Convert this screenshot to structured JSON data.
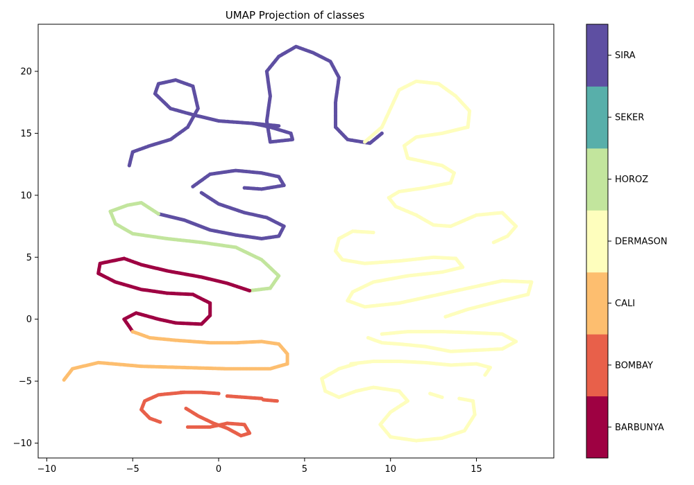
{
  "chart_data": {
    "type": "scatter",
    "title": "UMAP Projection of classes",
    "xlabel": "",
    "ylabel": "",
    "xlim": [
      -10.5,
      19.5
    ],
    "ylim": [
      -11.2,
      23.8
    ],
    "xticks": [
      -10,
      -5,
      0,
      5,
      10,
      15
    ],
    "yticks": [
      -10,
      -5,
      0,
      5,
      10,
      15,
      20
    ],
    "grid": false,
    "colorbar": {
      "placement": "right",
      "classes": [
        {
          "label": "BARBUNYA",
          "color": "#9e0142"
        },
        {
          "label": "BOMBAY",
          "color": "#e8604a"
        },
        {
          "label": "CALI",
          "color": "#fdbe6f"
        },
        {
          "label": "DERMASON",
          "color": "#fefebd"
        },
        {
          "label": "HOROZ",
          "color": "#c2e59d"
        },
        {
          "label": "SEKER",
          "color": "#58afaa"
        },
        {
          "label": "SIRA",
          "color": "#5e4fa2"
        }
      ]
    },
    "series": [
      {
        "class_index": 6,
        "points": [
          [
            -5.2,
            12.4
          ],
          [
            -5.0,
            13.5
          ],
          [
            -4.0,
            14.0
          ],
          [
            -2.8,
            14.5
          ],
          [
            -1.8,
            15.5
          ],
          [
            -1.2,
            17.0
          ],
          [
            -1.5,
            18.8
          ],
          [
            -2.5,
            19.3
          ],
          [
            -3.5,
            19.0
          ],
          [
            -3.7,
            18.2
          ],
          [
            -2.8,
            17.0
          ],
          [
            -1.5,
            16.5
          ],
          [
            0.0,
            16.0
          ],
          [
            2.0,
            15.8
          ],
          [
            3.5,
            15.6
          ]
        ]
      },
      {
        "class_index": 6,
        "points": [
          [
            2.0,
            15.8
          ],
          [
            3.0,
            15.5
          ],
          [
            4.2,
            15.0
          ],
          [
            4.3,
            14.5
          ],
          [
            3.0,
            14.3
          ],
          [
            2.8,
            16.0
          ],
          [
            3.0,
            18.0
          ],
          [
            2.8,
            20.0
          ],
          [
            3.5,
            21.2
          ],
          [
            4.5,
            22.0
          ],
          [
            5.5,
            21.5
          ],
          [
            6.5,
            20.8
          ],
          [
            7.0,
            19.5
          ],
          [
            6.8,
            17.5
          ],
          [
            6.8,
            15.5
          ],
          [
            7.5,
            14.5
          ],
          [
            8.8,
            14.2
          ],
          [
            9.5,
            15.0
          ]
        ]
      },
      {
        "class_index": 6,
        "points": [
          [
            -1.5,
            10.7
          ],
          [
            -0.5,
            11.7
          ],
          [
            1.0,
            12.0
          ],
          [
            2.5,
            11.8
          ],
          [
            3.5,
            11.5
          ],
          [
            3.8,
            10.8
          ],
          [
            2.5,
            10.5
          ],
          [
            1.5,
            10.6
          ]
        ]
      },
      {
        "class_index": 6,
        "points": [
          [
            -1.0,
            10.2
          ],
          [
            0.0,
            9.3
          ],
          [
            1.5,
            8.6
          ],
          [
            2.8,
            8.2
          ],
          [
            3.8,
            7.5
          ],
          [
            3.5,
            6.7
          ],
          [
            2.5,
            6.5
          ],
          [
            1.0,
            6.8
          ],
          [
            -0.5,
            7.2
          ],
          [
            -2.0,
            8.0
          ],
          [
            -3.5,
            8.5
          ]
        ]
      },
      {
        "class_index": 4,
        "points": [
          [
            -3.5,
            8.5
          ],
          [
            -4.5,
            9.4
          ],
          [
            -5.3,
            9.2
          ],
          [
            -6.3,
            8.7
          ],
          [
            -6.0,
            7.7
          ],
          [
            -5.0,
            6.9
          ],
          [
            -3.0,
            6.5
          ],
          [
            -1.0,
            6.2
          ],
          [
            1.0,
            5.8
          ],
          [
            2.5,
            4.8
          ],
          [
            3.5,
            3.5
          ],
          [
            3.0,
            2.5
          ],
          [
            1.8,
            2.3
          ]
        ]
      },
      {
        "class_index": 0,
        "points": [
          [
            1.8,
            2.3
          ],
          [
            0.5,
            2.9
          ],
          [
            -1.0,
            3.4
          ],
          [
            -3.0,
            3.9
          ],
          [
            -4.5,
            4.4
          ],
          [
            -5.5,
            4.9
          ],
          [
            -6.9,
            4.5
          ],
          [
            -7.0,
            3.7
          ],
          [
            -6.0,
            3.0
          ],
          [
            -4.5,
            2.4
          ],
          [
            -3.0,
            2.1
          ],
          [
            -1.5,
            2.0
          ],
          [
            -0.5,
            1.3
          ],
          [
            -0.5,
            0.3
          ],
          [
            -1.0,
            -0.4
          ],
          [
            -2.5,
            -0.3
          ],
          [
            -3.5,
            0.0
          ],
          [
            -4.8,
            0.5
          ],
          [
            -5.5,
            0.0
          ],
          [
            -5.0,
            -1.0
          ]
        ]
      },
      {
        "class_index": 2,
        "points": [
          [
            -5.0,
            -1.0
          ],
          [
            -4.0,
            -1.5
          ],
          [
            -2.5,
            -1.7
          ],
          [
            -0.5,
            -1.9
          ],
          [
            1.0,
            -1.9
          ],
          [
            2.5,
            -1.8
          ],
          [
            3.5,
            -2.0
          ],
          [
            4.0,
            -2.8
          ],
          [
            4.0,
            -3.6
          ],
          [
            3.0,
            -4.0
          ],
          [
            0.5,
            -4.0
          ],
          [
            -2.0,
            -3.9
          ],
          [
            -4.5,
            -3.8
          ],
          [
            -7.0,
            -3.5
          ],
          [
            -8.5,
            -4.0
          ],
          [
            -9.0,
            -4.9
          ]
        ]
      },
      {
        "class_index": 1,
        "points": [
          [
            -2.0,
            -5.9
          ],
          [
            -3.5,
            -6.1
          ],
          [
            -4.3,
            -6.6
          ],
          [
            -4.5,
            -7.3
          ],
          [
            -4.0,
            -8.0
          ],
          [
            -3.4,
            -8.3
          ]
        ]
      },
      {
        "class_index": 1,
        "points": [
          [
            -2.2,
            -5.9
          ],
          [
            -1.0,
            -5.9
          ],
          [
            0.0,
            -6.0
          ]
        ]
      },
      {
        "class_index": 1,
        "points": [
          [
            0.5,
            -6.2
          ],
          [
            1.5,
            -6.3
          ],
          [
            2.5,
            -6.4
          ]
        ]
      },
      {
        "class_index": 1,
        "points": [
          [
            2.6,
            -6.5
          ],
          [
            3.4,
            -6.6
          ]
        ]
      },
      {
        "class_index": 1,
        "points": [
          [
            -1.9,
            -7.2
          ],
          [
            -1.2,
            -7.8
          ],
          [
            -0.3,
            -8.4
          ],
          [
            0.5,
            -8.8
          ],
          [
            1.3,
            -9.4
          ],
          [
            1.8,
            -9.2
          ],
          [
            1.5,
            -8.5
          ],
          [
            0.5,
            -8.4
          ],
          [
            -0.5,
            -8.7
          ],
          [
            -1.8,
            -8.7
          ]
        ]
      },
      {
        "class_index": 3,
        "points": [
          [
            8.5,
            14.3
          ],
          [
            9.5,
            15.5
          ],
          [
            10.0,
            17.0
          ],
          [
            10.5,
            18.5
          ],
          [
            11.5,
            19.2
          ],
          [
            12.8,
            19.0
          ],
          [
            13.8,
            18.0
          ],
          [
            14.6,
            16.8
          ],
          [
            14.5,
            15.5
          ],
          [
            13.0,
            15.0
          ],
          [
            11.5,
            14.7
          ],
          [
            10.8,
            14.0
          ],
          [
            11.0,
            13.0
          ],
          [
            12.0,
            12.7
          ],
          [
            13.0,
            12.4
          ],
          [
            13.7,
            11.8
          ],
          [
            13.5,
            11.0
          ],
          [
            12.0,
            10.6
          ],
          [
            10.5,
            10.3
          ],
          [
            9.9,
            9.8
          ],
          [
            10.3,
            9.1
          ],
          [
            11.5,
            8.4
          ],
          [
            12.5,
            7.6
          ],
          [
            13.5,
            7.5
          ],
          [
            15.0,
            8.4
          ],
          [
            16.5,
            8.6
          ],
          [
            17.3,
            7.5
          ],
          [
            16.8,
            6.7
          ],
          [
            16.0,
            6.2
          ]
        ]
      },
      {
        "class_index": 3,
        "points": [
          [
            9.0,
            7.0
          ],
          [
            7.8,
            7.1
          ],
          [
            7.0,
            6.5
          ],
          [
            6.8,
            5.5
          ],
          [
            7.2,
            4.8
          ],
          [
            8.5,
            4.5
          ],
          [
            10.5,
            4.7
          ],
          [
            12.5,
            5.0
          ],
          [
            13.8,
            4.9
          ],
          [
            14.2,
            4.2
          ],
          [
            13.0,
            3.8
          ],
          [
            11.0,
            3.5
          ],
          [
            9.0,
            3.0
          ],
          [
            7.8,
            2.2
          ],
          [
            7.5,
            1.5
          ],
          [
            8.5,
            1.0
          ],
          [
            10.5,
            1.3
          ],
          [
            12.5,
            1.9
          ],
          [
            14.5,
            2.5
          ],
          [
            16.5,
            3.1
          ],
          [
            18.2,
            3.0
          ],
          [
            18.0,
            2.0
          ],
          [
            16.5,
            1.5
          ],
          [
            14.5,
            0.8
          ],
          [
            13.2,
            0.2
          ]
        ]
      },
      {
        "class_index": 3,
        "points": [
          [
            9.5,
            -1.2
          ],
          [
            11.0,
            -1.0
          ],
          [
            13.0,
            -1.0
          ],
          [
            15.0,
            -1.1
          ],
          [
            16.5,
            -1.2
          ],
          [
            17.3,
            -1.8
          ],
          [
            16.5,
            -2.4
          ],
          [
            15.0,
            -2.5
          ],
          [
            13.5,
            -2.6
          ],
          [
            12.0,
            -2.2
          ],
          [
            10.5,
            -2.0
          ],
          [
            9.5,
            -1.9
          ],
          [
            8.7,
            -1.5
          ]
        ]
      },
      {
        "class_index": 3,
        "points": [
          [
            8.0,
            -3.6
          ],
          [
            7.0,
            -4.0
          ],
          [
            6.0,
            -4.8
          ],
          [
            6.2,
            -5.8
          ],
          [
            7.0,
            -6.3
          ],
          [
            8.0,
            -5.8
          ],
          [
            9.0,
            -5.5
          ],
          [
            10.5,
            -5.8
          ],
          [
            11.0,
            -6.6
          ],
          [
            10.0,
            -7.5
          ],
          [
            9.4,
            -8.5
          ],
          [
            10.0,
            -9.5
          ],
          [
            11.5,
            -9.8
          ],
          [
            13.0,
            -9.6
          ],
          [
            14.3,
            -9.0
          ],
          [
            14.9,
            -7.7
          ],
          [
            14.8,
            -6.6
          ],
          [
            14.0,
            -6.4
          ]
        ]
      },
      {
        "class_index": 3,
        "points": [
          [
            7.7,
            -3.6
          ],
          [
            9.0,
            -3.4
          ],
          [
            10.5,
            -3.4
          ],
          [
            12.0,
            -3.5
          ],
          [
            13.5,
            -3.7
          ],
          [
            15.0,
            -3.6
          ],
          [
            15.8,
            -3.9
          ],
          [
            15.5,
            -4.5
          ]
        ]
      },
      {
        "class_index": 3,
        "points": [
          [
            12.3,
            -6.0
          ],
          [
            13.0,
            -6.3
          ]
        ]
      }
    ]
  }
}
